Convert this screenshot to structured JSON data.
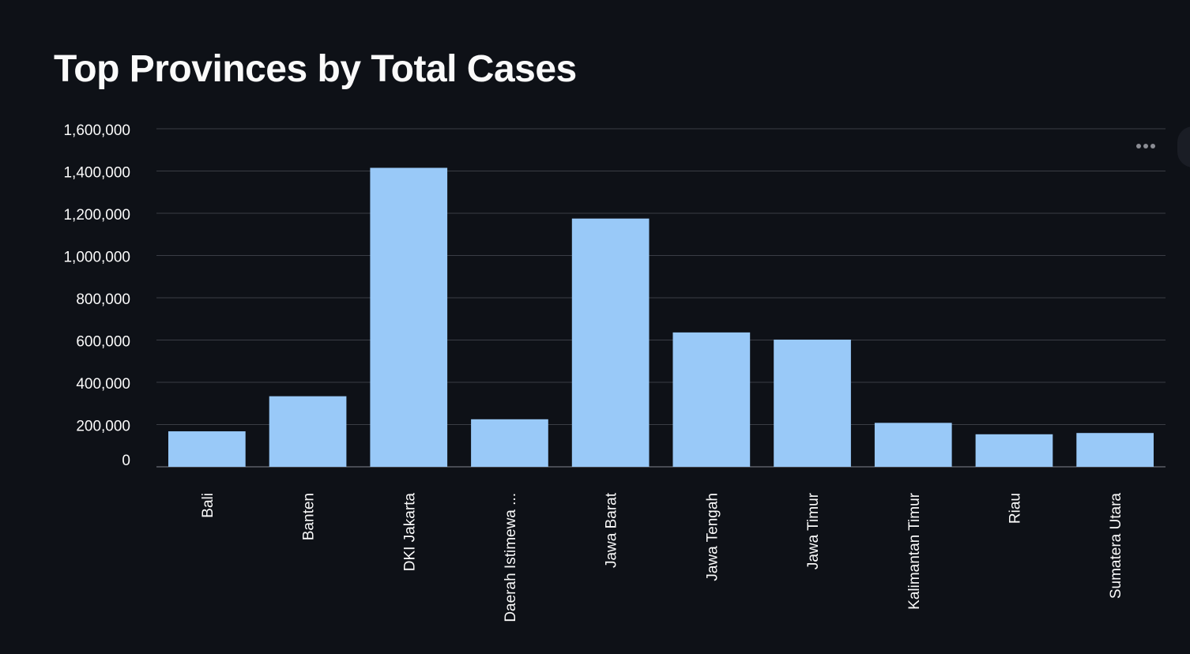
{
  "page": {
    "title": "Top Provinces by Total Cases"
  },
  "colors": {
    "background": "#0e1117",
    "bar": "#99c9f8",
    "grid": "#3a3d45",
    "text": "#fafafa"
  },
  "icons": {
    "menu": "more-horizontal-icon"
  },
  "chart_data": {
    "type": "bar",
    "title": "Top Provinces by Total Cases",
    "xlabel": "",
    "ylabel": "",
    "categories": [
      "Bali",
      "Banten",
      "DKI Jakarta",
      "Daerah Istimewa ...",
      "Jawa Barat",
      "Jawa Tengah",
      "Jawa Timur",
      "Kalimantan Timur",
      "Riau",
      "Sumatera Utara"
    ],
    "values": [
      168000,
      334000,
      1415000,
      225000,
      1175000,
      636000,
      602000,
      208000,
      154000,
      160000
    ],
    "ylim": [
      0,
      1600000
    ],
    "yticks": [
      0,
      200000,
      400000,
      600000,
      800000,
      1000000,
      1200000,
      1400000,
      1600000
    ],
    "ytick_labels": [
      "0",
      "200,000",
      "400,000",
      "600,000",
      "800,000",
      "1,000,000",
      "1,200,000",
      "1,400,000",
      "1,600,000"
    ],
    "grid": true,
    "legend": "none"
  }
}
